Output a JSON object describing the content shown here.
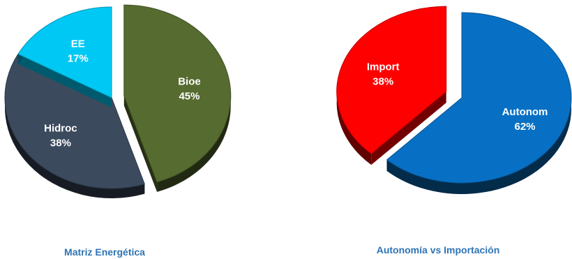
{
  "chart_data": [
    {
      "type": "pie",
      "title": "Matriz Energética",
      "categories": [
        "Bioe",
        "Hidroc",
        "EE"
      ],
      "values": [
        45,
        38,
        17
      ],
      "value_labels": [
        "45%",
        "38%",
        "17%"
      ],
      "colors": [
        "#566b2f",
        "#3c4a5e",
        "#00c8f4"
      ],
      "exploded": "Bioe",
      "style": "3d"
    },
    {
      "type": "pie",
      "title": "Autonomía vs Importación",
      "categories": [
        "Autonom",
        "Import"
      ],
      "values": [
        62,
        38
      ],
      "value_labels": [
        "62%",
        "38%"
      ],
      "colors": [
        "#0870c4",
        "#ff0000"
      ],
      "exploded": "Import",
      "style": "3d"
    }
  ]
}
